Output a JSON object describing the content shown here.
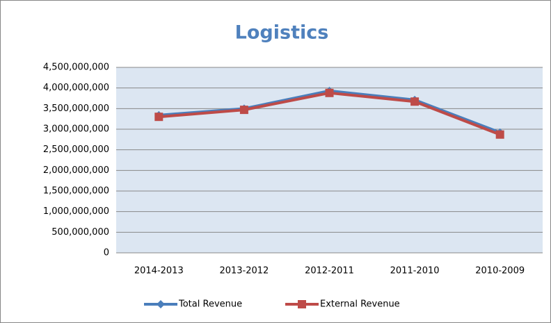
{
  "chart_data": {
    "type": "line",
    "title": "Logistics",
    "categories": [
      "2014-2013",
      "2013-2012",
      "2012-2011",
      "2011-2010",
      "2010-2009"
    ],
    "series": [
      {
        "name": "Total Revenue",
        "color": "#4a7ebb",
        "marker": "diamond",
        "values": [
          3340000000,
          3500000000,
          3930000000,
          3710000000,
          2920000000
        ]
      },
      {
        "name": "External Revenue",
        "color": "#be4b48",
        "marker": "square",
        "values": [
          3300000000,
          3470000000,
          3880000000,
          3670000000,
          2870000000
        ]
      }
    ],
    "ylim": [
      0,
      4500000000
    ],
    "yticks": [
      0,
      {
        "value": 500000000,
        "label": "500,000,000"
      },
      {
        "value": 1000000000,
        "label": "1,000,000,000"
      },
      {
        "value": 1500000000,
        "label": "1,500,000,000"
      },
      {
        "value": 2000000000,
        "label": "2,000,000,000"
      },
      {
        "value": 2500000000,
        "label": "2,500,000,000"
      },
      {
        "value": 3000000000,
        "label": "3,000,000,000"
      },
      {
        "value": 3500000000,
        "label": "3,500,000,000"
      },
      {
        "value": 4000000000,
        "label": "4,000,000,000"
      },
      {
        "value": 4500000000,
        "label": "4,500,000,000"
      }
    ],
    "grid": true,
    "legend": "bottom"
  }
}
